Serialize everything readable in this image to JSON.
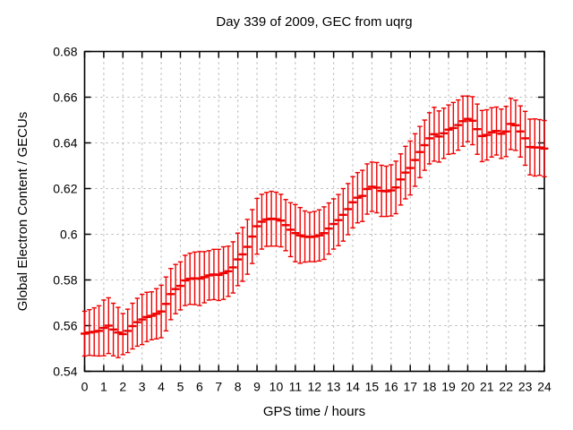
{
  "window": {
    "background": "#ffffff"
  },
  "chart_data": {
    "type": "scatter",
    "subtype": "yerrorbars",
    "title": "Day 339 of 2009, GEC from uqrg",
    "xlabel": "GPS time / hours",
    "ylabel": "Global Electron Content / GECUs",
    "xlim": [
      0,
      24
    ],
    "ylim": [
      0.54,
      0.68
    ],
    "grid": true,
    "legend_position": "none",
    "x_tick_labels": [
      "0",
      "1",
      "2",
      "3",
      "4",
      "5",
      "6",
      "7",
      "8",
      "9",
      "10",
      "11",
      "12",
      "13",
      "14",
      "15",
      "16",
      "17",
      "18",
      "19",
      "20",
      "21",
      "22",
      "23",
      "24"
    ],
    "x_tick_values": [
      0,
      1,
      2,
      3,
      4,
      5,
      6,
      7,
      8,
      9,
      10,
      11,
      12,
      13,
      14,
      15,
      16,
      17,
      18,
      19,
      20,
      21,
      22,
      23,
      24
    ],
    "y_tick_labels": [
      "0.54",
      "0.56",
      "0.58",
      "0.6",
      "0.62",
      "0.64",
      "0.66",
      "0.68"
    ],
    "y_tick_values": [
      0.54,
      0.56,
      0.58,
      0.6,
      0.62,
      0.64,
      0.66,
      0.68
    ],
    "colors": {
      "series": "#ee0000",
      "grid": "#b0b0b0",
      "border": "#000000",
      "text": "#000000"
    },
    "series": [
      {
        "name": "GEC",
        "style": "yerrorbars",
        "color": "#ee0000",
        "x": [
          0,
          0.25,
          0.5,
          0.75,
          1,
          1.25,
          1.5,
          1.75,
          2,
          2.25,
          2.5,
          2.75,
          3,
          3.25,
          3.5,
          3.75,
          4,
          4.25,
          4.5,
          4.75,
          5,
          5.25,
          5.5,
          5.75,
          6,
          6.25,
          6.5,
          6.75,
          7,
          7.25,
          7.5,
          7.75,
          8,
          8.25,
          8.5,
          8.75,
          9,
          9.25,
          9.5,
          9.75,
          10,
          10.25,
          10.5,
          10.75,
          11,
          11.25,
          11.5,
          11.75,
          12,
          12.25,
          12.5,
          12.75,
          13,
          13.25,
          13.5,
          13.75,
          14,
          14.25,
          14.5,
          14.75,
          15,
          15.25,
          15.5,
          15.75,
          16,
          16.25,
          16.5,
          16.75,
          17,
          17.25,
          17.5,
          17.75,
          18,
          18.25,
          18.5,
          18.75,
          19,
          19.25,
          19.5,
          19.75,
          20,
          20.25,
          20.5,
          20.75,
          21,
          21.25,
          21.5,
          21.75,
          22,
          22.25,
          22.5,
          22.75,
          23,
          23.25,
          23.5,
          23.75,
          24
        ],
        "y": [
          0.5565,
          0.557,
          0.5573,
          0.5577,
          0.559,
          0.56,
          0.5583,
          0.557,
          0.5563,
          0.5577,
          0.5598,
          0.5615,
          0.5627,
          0.5638,
          0.5643,
          0.5652,
          0.5662,
          0.5695,
          0.5738,
          0.576,
          0.5774,
          0.5798,
          0.5805,
          0.5807,
          0.5806,
          0.5812,
          0.582,
          0.5824,
          0.5822,
          0.583,
          0.5838,
          0.5855,
          0.589,
          0.5912,
          0.5945,
          0.599,
          0.6035,
          0.6055,
          0.6065,
          0.6068,
          0.6066,
          0.606,
          0.604,
          0.602,
          0.6005,
          0.5995,
          0.599,
          0.5988,
          0.599,
          0.5995,
          0.6005,
          0.6025,
          0.6045,
          0.6062,
          0.6085,
          0.611,
          0.614,
          0.616,
          0.6168,
          0.6198,
          0.6208,
          0.6204,
          0.619,
          0.6188,
          0.6192,
          0.6205,
          0.624,
          0.627,
          0.629,
          0.6325,
          0.636,
          0.639,
          0.642,
          0.6438,
          0.6428,
          0.6442,
          0.6458,
          0.6465,
          0.6478,
          0.6495,
          0.6505,
          0.6497,
          0.646,
          0.643,
          0.6435,
          0.6446,
          0.6452,
          0.644,
          0.645,
          0.6483,
          0.6477,
          0.645,
          0.642,
          0.6382,
          0.638,
          0.638,
          0.6375
        ],
        "yerr": [
          0.0098,
          0.01,
          0.0105,
          0.011,
          0.0122,
          0.0122,
          0.0115,
          0.011,
          0.009,
          0.0095,
          0.01,
          0.0105,
          0.011,
          0.0108,
          0.0105,
          0.011,
          0.0115,
          0.0118,
          0.0112,
          0.0108,
          0.0105,
          0.011,
          0.0112,
          0.0115,
          0.0118,
          0.0112,
          0.0108,
          0.011,
          0.0112,
          0.0115,
          0.011,
          0.0112,
          0.0115,
          0.0118,
          0.012,
          0.0118,
          0.0122,
          0.012,
          0.0118,
          0.012,
          0.0118,
          0.0115,
          0.0112,
          0.0118,
          0.0125,
          0.0122,
          0.0112,
          0.0108,
          0.011,
          0.0112,
          0.0115,
          0.0112,
          0.011,
          0.0112,
          0.0115,
          0.0112,
          0.0112,
          0.011,
          0.0112,
          0.011,
          0.0108,
          0.011,
          0.0112,
          0.011,
          0.0112,
          0.0115,
          0.0112,
          0.0115,
          0.0118,
          0.0115,
          0.0112,
          0.011,
          0.0112,
          0.0118,
          0.0112,
          0.011,
          0.0108,
          0.0112,
          0.011,
          0.011,
          0.01,
          0.0105,
          0.011,
          0.0112,
          0.011,
          0.0108,
          0.0105,
          0.0108,
          0.011,
          0.0112,
          0.011,
          0.0112,
          0.0118,
          0.0122,
          0.0125,
          0.0122,
          0.0123
        ]
      }
    ]
  }
}
